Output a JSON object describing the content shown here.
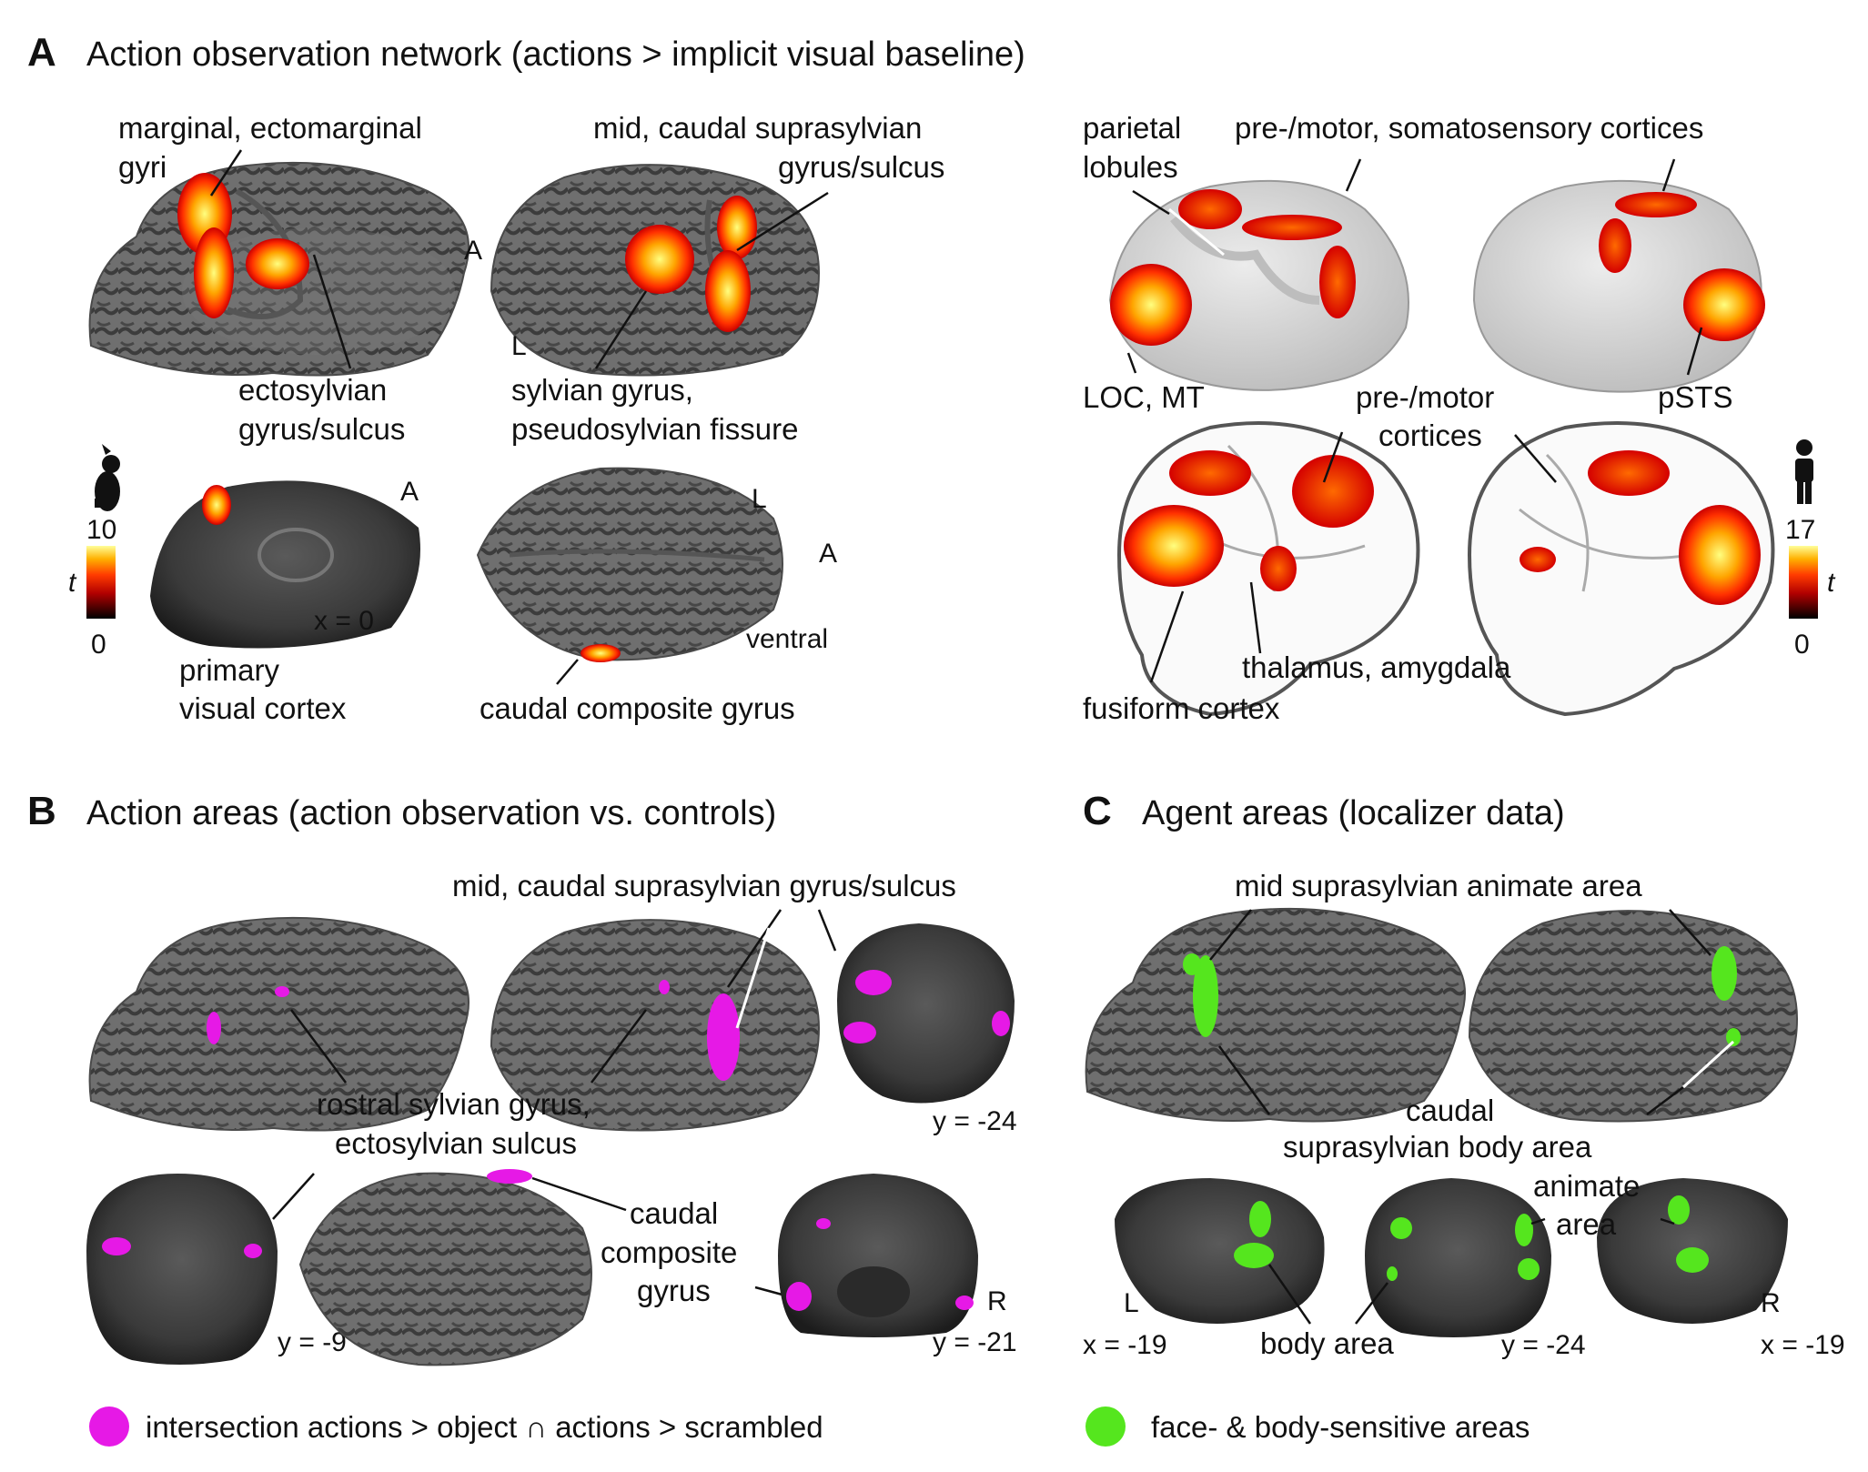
{
  "panelA": {
    "letter": "A",
    "title": "Action observation network (actions > implicit visual baseline)",
    "dog": {
      "marginal": [
        "marginal, ectomarginal",
        "gyri"
      ],
      "midCaudal": [
        "mid, caudal suprasylvian",
        "gyrus/sulcus"
      ],
      "ectosylvian": [
        "ectosylvian",
        "gyrus/sulcus"
      ],
      "sylvian": [
        "sylvian gyrus,",
        "pseudosylvian fissure"
      ],
      "orientA1": "A",
      "orientL1": "L",
      "orientA2": "A",
      "sliceLabel": "x = 0",
      "primaryVisual": [
        "primary",
        "visual cortex"
      ],
      "orientL2": "L",
      "orientA3": "A",
      "ventral": "ventral",
      "caudalComposite": "caudal composite gyrus",
      "colorbar": {
        "max": "10",
        "min": "0",
        "var": "t"
      }
    },
    "human": {
      "parietal": [
        "parietal",
        "lobules"
      ],
      "premotorSomato": "pre-/motor, somatosensory cortices",
      "loc": "LOC, MT",
      "psts": "pSTS",
      "premotor": [
        "pre-/motor",
        "cortices"
      ],
      "thalamus": "thalamus, amygdala",
      "fusiform": "fusiform cortex",
      "colorbar": {
        "max": "17",
        "min": "0",
        "var": "t"
      }
    }
  },
  "panelB": {
    "letter": "B",
    "title": "Action areas (action observation vs. controls)",
    "midCaudal": "mid, caudal suprasylvian gyrus/sulcus",
    "rostral": [
      "rostral sylvian gyrus,",
      "ectosylvian sulcus"
    ],
    "caudalComposite": [
      "caudal",
      "composite",
      "gyrus"
    ],
    "y24": "y = -24",
    "y9": "y = -9",
    "y21": "y = -21",
    "orientR": "R",
    "legend": "intersection actions > object ∩ actions > scrambled",
    "legendColor": "#e619e6"
  },
  "panelC": {
    "letter": "C",
    "title": "Agent areas (localizer data)",
    "midAnimate": "mid suprasylvian animate area",
    "caudalBody": [
      "caudal",
      "suprasylvian body area"
    ],
    "animateArea": [
      "animate",
      "area"
    ],
    "bodyArea": "body area",
    "x19a": "x = -19",
    "y24": "y = -24",
    "x19b": "x = -19",
    "orientL": "L",
    "orientR": "R",
    "legend": "face- & body-sensitive areas",
    "legendColor": "#55e61e"
  }
}
